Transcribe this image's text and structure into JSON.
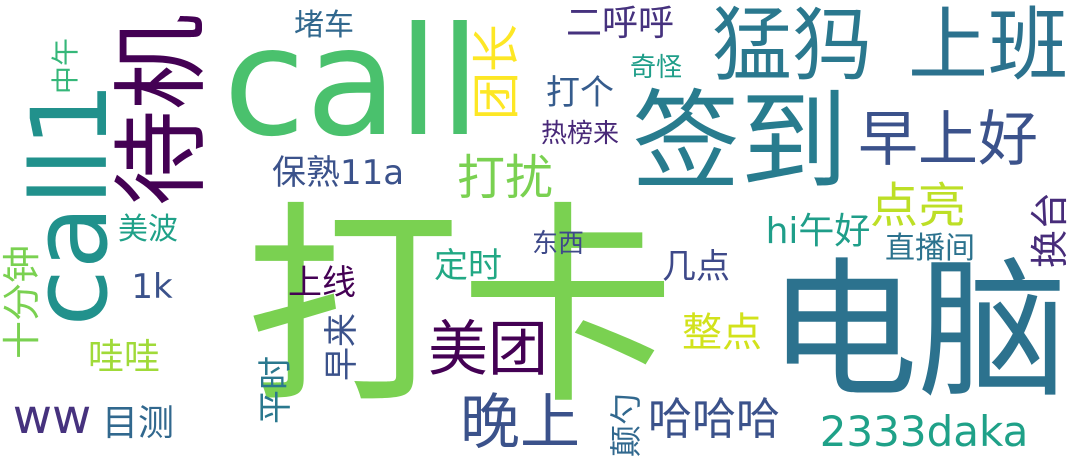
{
  "words": [
    {
      "text": "打卡",
      "color": "#7ad151"
    },
    {
      "text": "电脑",
      "color": "#2c728e"
    },
    {
      "text": "call",
      "color": "#4ac16d"
    },
    {
      "text": "签到",
      "color": "#287c8e"
    },
    {
      "text": "猛犸",
      "color": "#2a788e"
    },
    {
      "text": "上班",
      "color": "#2c728e"
    },
    {
      "text": "待机",
      "color": "#440154"
    },
    {
      "text": "call1",
      "color": "#21918c"
    },
    {
      "text": "早上好",
      "color": "#3b528b"
    },
    {
      "text": "美团",
      "color": "#440154"
    },
    {
      "text": "晚上",
      "color": "#3b528b"
    },
    {
      "text": "打扰",
      "color": "#7ad151"
    },
    {
      "text": "点亮",
      "color": "#bddf26"
    },
    {
      "text": "团长",
      "color": "#fde725"
    },
    {
      "text": "二呼呼",
      "color": "#46327e"
    },
    {
      "text": "哈哈哈",
      "color": "#3b528b"
    },
    {
      "text": "2333daka",
      "color": "#1fa188"
    },
    {
      "text": "hi午好",
      "color": "#1f9e89"
    },
    {
      "text": "整点",
      "color": "#d2e21b"
    },
    {
      "text": "ww",
      "color": "#46327e"
    },
    {
      "text": "目测",
      "color": "#31688e"
    },
    {
      "text": "十分钟",
      "color": "#7ad151"
    },
    {
      "text": "保熟11a",
      "color": "#3b528b"
    },
    {
      "text": "打个",
      "color": "#365c8d"
    },
    {
      "text": "堵车",
      "color": "#31688e"
    },
    {
      "text": "中午",
      "color": "#35b779"
    },
    {
      "text": "热榜来",
      "color": "#482878"
    },
    {
      "text": "奇怪",
      "color": "#1f9e89"
    },
    {
      "text": "换台",
      "color": "#472c7a"
    },
    {
      "text": "直播间",
      "color": "#2c728e"
    },
    {
      "text": "东西",
      "color": "#3e4989"
    },
    {
      "text": "几点",
      "color": "#3e4989"
    },
    {
      "text": "定时",
      "color": "#22a884"
    },
    {
      "text": "上线",
      "color": "#440154"
    },
    {
      "text": "早来",
      "color": "#3b528b"
    },
    {
      "text": "美波",
      "color": "#1fa188"
    },
    {
      "text": "1k",
      "color": "#3b528b"
    },
    {
      "text": "哇哇",
      "color": "#a0da39"
    },
    {
      "text": "平时",
      "color": "#2a788e"
    },
    {
      "text": "颠勺",
      "color": "#31688e"
    }
  ]
}
